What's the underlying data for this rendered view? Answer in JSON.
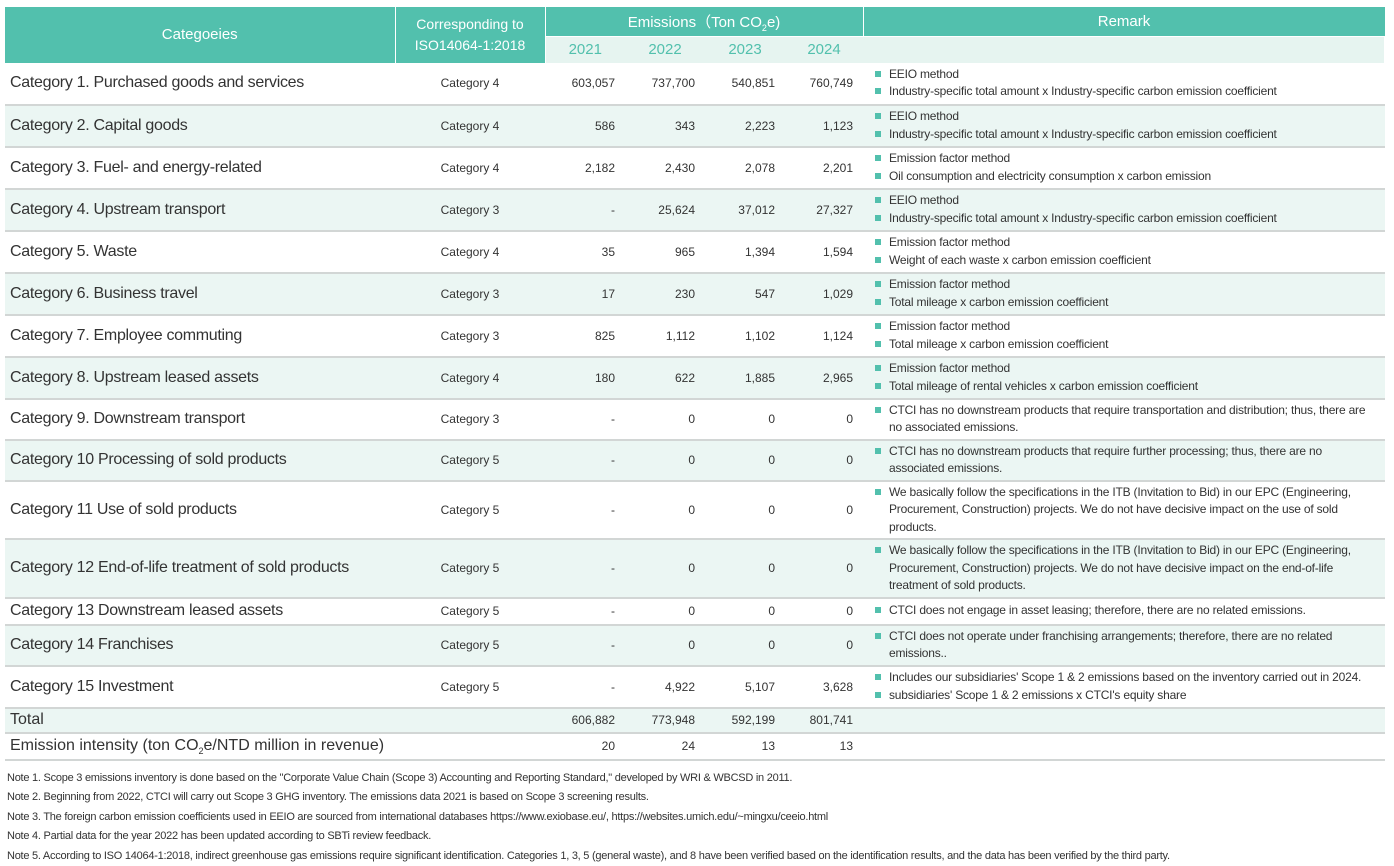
{
  "header": {
    "categories": "Categoeies",
    "iso_line1": "Corresponding to",
    "iso_line2": "ISO14064-1:2018",
    "emissions_prefix": "Emissions（Ton CO",
    "emissions_sub": "2",
    "emissions_suffix": "e)",
    "remark": "Remark",
    "years": [
      "2021",
      "2022",
      "2023",
      "2024"
    ]
  },
  "rows": [
    {
      "category": "Category 1.  Purchased goods and services",
      "iso": "Category 4",
      "values": [
        "603,057",
        "737,700",
        "540,851",
        "760,749"
      ],
      "remarks": [
        "EEIO method",
        "Industry-specific total amount x Industry-specific carbon emission coefficient"
      ]
    },
    {
      "category": "Category 2. Capital goods",
      "iso": "Category 4",
      "values": [
        "586",
        "343",
        "2,223",
        "1,123"
      ],
      "remarks": [
        "EEIO method",
        "Industry-specific total amount x Industry-specific carbon emission coefficient"
      ]
    },
    {
      "category": "Category 3. Fuel- and energy-related",
      "iso": "Category 4",
      "values": [
        "2,182",
        "2,430",
        "2,078",
        "2,201"
      ],
      "remarks": [
        "Emission factor method",
        "Oil consumption and electricity consumption x carbon emission"
      ]
    },
    {
      "category": "Category 4. Upstream transport",
      "iso": "Category 3",
      "values": [
        "-",
        "25,624",
        "37,012",
        "27,327"
      ],
      "remarks": [
        "EEIO method",
        "Industry-specific total amount x Industry-specific carbon emission coefficient"
      ]
    },
    {
      "category": "Category 5. Waste",
      "iso": "Category 4",
      "values": [
        "35",
        "965",
        "1,394",
        "1,594"
      ],
      "remarks": [
        "Emission factor method",
        "Weight of each waste x carbon emission coefficient"
      ]
    },
    {
      "category": "Category 6. Business travel",
      "iso": "Category 3",
      "values": [
        "17",
        "230",
        "547",
        "1,029"
      ],
      "remarks": [
        "Emission factor method",
        "Total mileage x carbon emission coefficient"
      ]
    },
    {
      "category": "Category 7. Employee commuting",
      "iso": "Category 3",
      "values": [
        "825",
        "1,112",
        "1,102",
        "1,124"
      ],
      "remarks": [
        "Emission factor method",
        "Total mileage x carbon emission coefficient"
      ]
    },
    {
      "category": "Category 8. Upstream leased assets",
      "iso": "Category 4",
      "values": [
        "180",
        "622",
        "1,885",
        "2,965"
      ],
      "remarks": [
        "Emission factor method",
        "Total mileage of rental vehicles x carbon emission coefficient"
      ]
    },
    {
      "category": "Category 9. Downstream transport",
      "iso": "Category 3",
      "values": [
        "-",
        "0",
        "0",
        "0"
      ],
      "remarks": [
        "CTCI has no downstream products that require transportation and distribution; thus, there are no associated emissions."
      ]
    },
    {
      "category": "Category 10 Processing of sold products",
      "iso": "Category 5",
      "values": [
        "-",
        "0",
        "0",
        "0"
      ],
      "remarks": [
        "CTCI has no downstream products that require further processing; thus, there are no associated emissions."
      ]
    },
    {
      "category": "Category 11 Use of sold products",
      "iso": "Category 5",
      "values": [
        "-",
        "0",
        "0",
        "0"
      ],
      "remarks": [
        "We basically follow the specifications in the ITB (Invitation to Bid) in our EPC (Engineering, Procurement, Construction) projects. We do not have decisive impact on the use of sold products."
      ]
    },
    {
      "category": "Category 12 End-of-life treatment of sold products",
      "iso": "Category 5",
      "values": [
        "-",
        "0",
        "0",
        "0"
      ],
      "remarks": [
        "We basically follow the specifications in the ITB (Invitation to Bid) in our EPC (Engineering, Procurement, Construction) projects. We do not have decisive impact on the end-of-life treatment of sold products."
      ]
    },
    {
      "category": "Category 13 Downstream leased assets",
      "iso": "Category 5",
      "values": [
        "-",
        "0",
        "0",
        "0"
      ],
      "remarks": [
        "CTCI does not engage in asset leasing; therefore, there are no related emissions."
      ]
    },
    {
      "category": "Category 14 Franchises",
      "iso": "Category 5",
      "values": [
        "-",
        "0",
        "0",
        "0"
      ],
      "remarks": [
        "CTCI does not operate under franchising arrangements; therefore, there are no related emissions.."
      ]
    },
    {
      "category": "Category 15 Investment",
      "iso": "Category 5",
      "values": [
        "-",
        "4,922",
        "5,107",
        "3,628"
      ],
      "remarks": [
        "Includes our subsidiaries' Scope 1 & 2 emissions based on the inventory carried out in 2024.",
        "subsidiaries' Scope 1 & 2 emissions x CTCI's equity share"
      ]
    }
  ],
  "total": {
    "label": "Total",
    "values": [
      "606,882",
      "773,948",
      "592,199",
      "801,741"
    ]
  },
  "intensity": {
    "label_prefix": "Emission intensity (ton CO",
    "label_sub": "2",
    "label_suffix": "e/NTD million in revenue)",
    "values": [
      "20",
      "24",
      "13",
      "13"
    ]
  },
  "notes": [
    "Note 1. Scope 3 emissions inventory is done based on the \"Corporate Value Chain (Scope 3) Accounting and Reporting Standard,\" developed by WRI & WBCSD in 2011.",
    "Note 2. Beginning from 2022, CTCI will carry out Scope 3 GHG inventory. The emissions data 2021 is based on Scope 3 screening results.",
    "Note 3. The foreign carbon emission coefficients used in EEIO are sourced from international databases https://www.exiobase.eu/, https://websites.umich.edu/~mingxu/ceeio.html",
    "Note 4. Partial data for the year 2022 has been updated according to SBTi review feedback.",
    "Note 5. According to ISO 14064-1:2018, indirect greenhouse gas emissions require significant identification. Categories 1, 3, 5 (general waste), and 8 have been verified based on the identification results, and the data has been verified by the third party."
  ],
  "colors": {
    "header": "#52c0ad",
    "alt_row": "#ebf6f3",
    "bullet": "#52c0ad"
  }
}
